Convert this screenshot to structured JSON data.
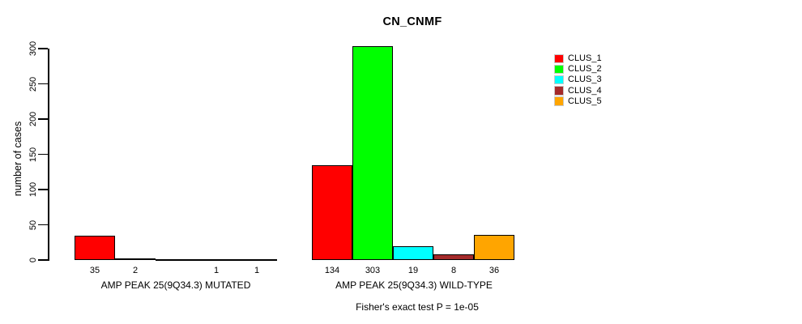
{
  "chart_data": {
    "type": "bar",
    "title": "CN_CNMF",
    "ylabel": "number of cases",
    "xlabel": "Fisher's exact test P = 1e-05",
    "ylim": [
      0,
      300
    ],
    "yticks": [
      0,
      50,
      100,
      150,
      200,
      250,
      300
    ],
    "grid": false,
    "background": "#ffffff",
    "legend_position": "top-right",
    "categories": [
      "AMP PEAK 25(9Q34.3) MUTATED",
      "AMP PEAK 25(9Q34.3) WILD-TYPE"
    ],
    "series": [
      {
        "name": "CLUS_1",
        "color": "#ff0000",
        "values": [
          35,
          134
        ]
      },
      {
        "name": "CLUS_2",
        "color": "#00ff00",
        "values": [
          2,
          303
        ]
      },
      {
        "name": "CLUS_3",
        "color": "#00ffff",
        "values": [
          0,
          19
        ]
      },
      {
        "name": "CLUS_4",
        "color": "#a52a2a",
        "values": [
          1,
          8
        ]
      },
      {
        "name": "CLUS_5",
        "color": "#ffa500",
        "values": [
          1,
          36
        ]
      }
    ],
    "bar_count_labels": [
      [
        "35",
        "2",
        "",
        "1",
        "1"
      ],
      [
        "134",
        "303",
        "19",
        "8",
        "36"
      ]
    ]
  }
}
